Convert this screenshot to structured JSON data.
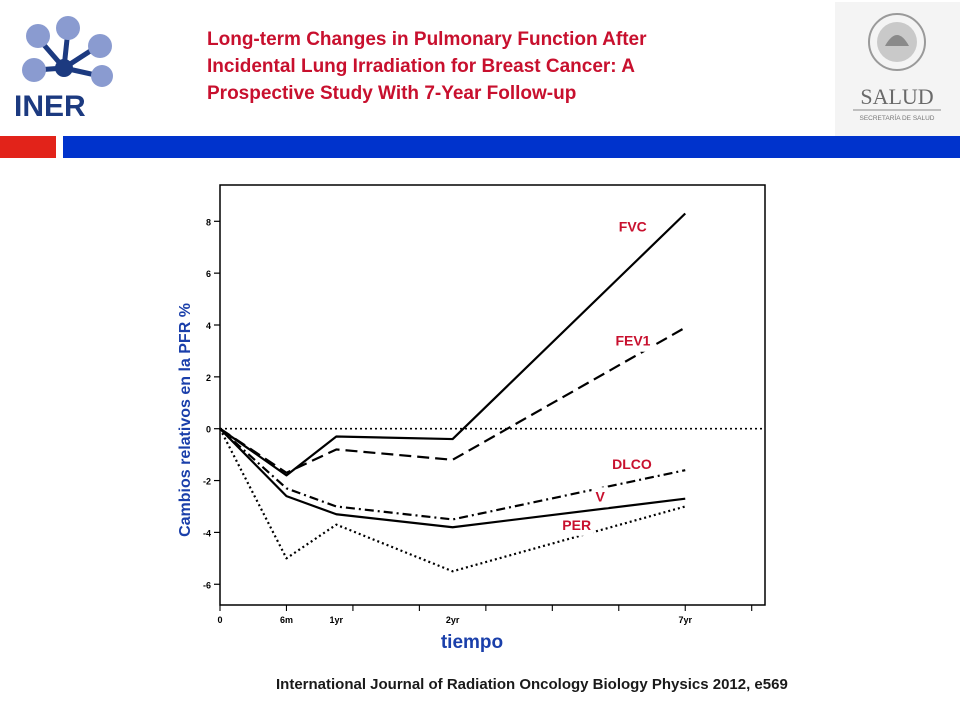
{
  "header": {
    "title_lines": [
      "Long-term Changes in Pulmonary Function After",
      "Incidental Lung Irradiation for Breast Cancer: A",
      "Prospective Study With 7-Year Follow-up"
    ],
    "left_logo_text": "INER",
    "right_logo_text": "SALUD",
    "right_logo_subtext": "SECRETARÍA DE SALUD",
    "colors": {
      "title": "#c8102e",
      "bar_red": "#e2231a",
      "bar_blue": "#0033cc"
    }
  },
  "chart_data": {
    "type": "line",
    "xlabel": "tiempo",
    "ylabel": "Cambios relativos en la PFR %",
    "x_tick_labels": [
      "0",
      "6m",
      "1yr",
      "2yr",
      "7yr"
    ],
    "y_ticks": [
      8,
      6,
      4,
      2,
      0,
      -2,
      -4,
      -6
    ],
    "y_tick_labels": [
      "8",
      "6",
      "4",
      "2",
      "0",
      "-2",
      "-4",
      "-6"
    ],
    "ylim": [
      -6.8,
      9.4
    ],
    "xlim": [
      0,
      8.2
    ],
    "reference_line": 0,
    "series": [
      {
        "name": "FVC",
        "style": "solid",
        "x": [
          0,
          1,
          1.75,
          3.5,
          7
        ],
        "values": [
          0,
          -1.8,
          -0.3,
          -0.4,
          8.3
        ]
      },
      {
        "name": "FEV1",
        "style": "longdash",
        "x": [
          0,
          1,
          1.75,
          3.5,
          7
        ],
        "values": [
          0,
          -1.7,
          -0.8,
          -1.2,
          3.9
        ]
      },
      {
        "name": "DLCO",
        "style": "dashdot",
        "x": [
          0,
          1,
          1.75,
          3.5,
          7
        ],
        "values": [
          0,
          -2.3,
          -3.0,
          -3.5,
          -1.6
        ]
      },
      {
        "name": "V",
        "style": "solid",
        "x": [
          0,
          1,
          1.75,
          3.5,
          7
        ],
        "values": [
          0,
          -2.6,
          -3.3,
          -3.8,
          -2.7
        ]
      },
      {
        "name": "PER",
        "style": "dotted",
        "x": [
          0,
          1,
          1.75,
          3.5,
          7
        ],
        "values": [
          0,
          -5.0,
          -3.7,
          -5.5,
          -3.0
        ]
      }
    ],
    "label_color": "#c8102e"
  },
  "footer": {
    "citation": "International Journal of Radiation Oncology Biology Physics 2012, e569"
  }
}
